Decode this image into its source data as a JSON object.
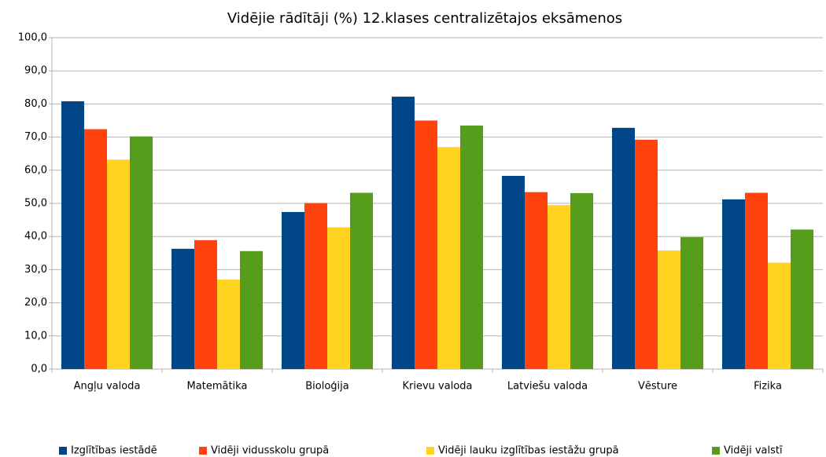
{
  "chart_data": {
    "type": "bar",
    "title": "Vidējie rādītāji (%) 12.klases centralizētajos eksāmenos",
    "categories": [
      "Angļu valoda",
      "Matemātika",
      "Bioloģija",
      "Krievu valoda",
      "Latviešu valoda",
      "Vēsture",
      "Fizika"
    ],
    "series": [
      {
        "name": "Izglītības iestādē",
        "color": "#004586",
        "values": [
          80.8,
          36.3,
          47.4,
          82.2,
          58.3,
          72.8,
          51.2
        ]
      },
      {
        "name": "Vidēji vidusskolu grupā",
        "color": "#ff420e",
        "values": [
          72.4,
          38.9,
          50.1,
          75.0,
          53.4,
          69.2,
          53.2
        ]
      },
      {
        "name": "Vidēji lauku izglītības iestāžu grupā",
        "color": "#ffd320",
        "values": [
          63.2,
          27.0,
          42.8,
          67.0,
          49.5,
          35.8,
          32.1
        ]
      },
      {
        "name": "Vidēji valstī",
        "color": "#579d1c",
        "values": [
          70.2,
          35.6,
          53.2,
          73.5,
          53.1,
          39.8,
          42.1
        ]
      }
    ],
    "ylim": [
      0,
      100
    ],
    "yticks": [
      {
        "value": 0,
        "label": "0,0"
      },
      {
        "value": 10,
        "label": "10,0"
      },
      {
        "value": 20,
        "label": "20,0"
      },
      {
        "value": 30,
        "label": "30,0"
      },
      {
        "value": 40,
        "label": "40,0"
      },
      {
        "value": 50,
        "label": "50,0"
      },
      {
        "value": 60,
        "label": "60,0"
      },
      {
        "value": 70,
        "label": "70,0"
      },
      {
        "value": 80,
        "label": "80,0"
      },
      {
        "value": 90,
        "label": "90,0"
      },
      {
        "value": 100,
        "label": "100,0"
      }
    ],
    "grid": true,
    "legend": "bottom"
  }
}
